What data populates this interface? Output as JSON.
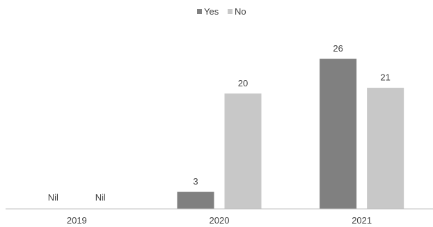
{
  "chart_data": {
    "type": "bar",
    "categories": [
      "2019",
      "2020",
      "2021"
    ],
    "series": [
      {
        "name": "Yes",
        "color": "#808080",
        "values": [
          null,
          3,
          26
        ],
        "labels": [
          "Nil",
          "3",
          "26"
        ]
      },
      {
        "name": "No",
        "color": "#c8c8c8",
        "values": [
          null,
          20,
          21
        ],
        "labels": [
          "Nil",
          "20",
          "21"
        ]
      }
    ],
    "title": "",
    "xlabel": "",
    "ylabel": "",
    "ylim": [
      0,
      26
    ],
    "grid": false,
    "legend_position": "top-center"
  }
}
